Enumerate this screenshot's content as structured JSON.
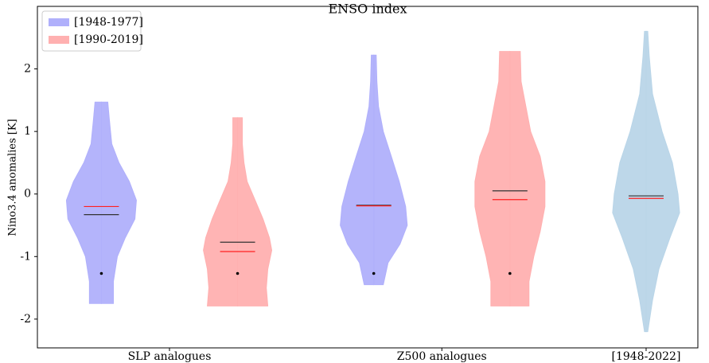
{
  "chart_data": {
    "type": "violin",
    "title": "ENSO index",
    "y_label": "Nino3.4 anomalies [K]",
    "xlim": [
      0.53,
      5.38
    ],
    "ylim": [
      -2.46,
      3.0
    ],
    "xticks": [
      {
        "value": 1.5,
        "label": "SLP analogues"
      },
      {
        "value": 3.5,
        "label": "Z500 analogues"
      },
      {
        "value": 5,
        "label": "[1948-2022]"
      }
    ],
    "yticks": [
      -2,
      -1,
      0,
      1,
      2
    ],
    "legend": "upper left",
    "series": [
      {
        "name": "[1948-1977]",
        "color": "#b0b0fb"
      },
      {
        "name": "[1990-2019]",
        "color": "#ffb0b0"
      }
    ],
    "mean_color": "#333333",
    "median_color": "#ff2020",
    "marker_color": "#000000",
    "violins": [
      {
        "x": 1,
        "color": "#b0b0fb",
        "min": -1.75,
        "max": 1.47,
        "mean": -0.33,
        "median": -0.2,
        "marker": -1.27,
        "profile": {
          "y": [
            1.47,
            1.2,
            0.8,
            0.5,
            0.2,
            -0.1,
            -0.4,
            -0.7,
            -1.0,
            -1.4,
            -1.75
          ],
          "halfwidth": [
            0.047,
            0.058,
            0.076,
            0.129,
            0.205,
            0.257,
            0.246,
            0.175,
            0.117,
            0.088,
            0.088
          ]
        }
      },
      {
        "x": 2,
        "color": "#ffb0b0",
        "min": -1.79,
        "max": 1.22,
        "mean": -0.77,
        "median": -0.92,
        "marker": -1.27,
        "profile": {
          "y": [
            1.22,
            0.8,
            0.5,
            0.2,
            -0.1,
            -0.4,
            -0.7,
            -0.9,
            -1.2,
            -1.5,
            -1.79
          ],
          "halfwidth": [
            0.035,
            0.035,
            0.047,
            0.07,
            0.129,
            0.187,
            0.234,
            0.251,
            0.222,
            0.211,
            0.222
          ]
        }
      },
      {
        "x": 3,
        "color": "#b0b0fb",
        "min": -1.45,
        "max": 2.22,
        "mean": -0.18,
        "median": -0.19,
        "marker": -1.27,
        "profile": {
          "y": [
            2.22,
            1.8,
            1.4,
            1.0,
            0.6,
            0.2,
            -0.2,
            -0.5,
            -0.8,
            -1.1,
            -1.45
          ],
          "halfwidth": [
            0.018,
            0.023,
            0.035,
            0.07,
            0.129,
            0.187,
            0.234,
            0.246,
            0.193,
            0.105,
            0.07
          ]
        }
      },
      {
        "x": 4,
        "color": "#ffb0b0",
        "min": -1.79,
        "max": 2.28,
        "mean": 0.05,
        "median": -0.09,
        "marker": -1.27,
        "profile": {
          "y": [
            2.28,
            1.8,
            1.4,
            1.0,
            0.6,
            0.2,
            -0.2,
            -0.6,
            -1.0,
            -1.4,
            -1.79
          ],
          "halfwidth": [
            0.076,
            0.082,
            0.117,
            0.152,
            0.222,
            0.257,
            0.257,
            0.222,
            0.175,
            0.14,
            0.14
          ]
        }
      },
      {
        "x": 5,
        "color": "#b9d5e8",
        "min": -2.2,
        "max": 2.6,
        "mean": -0.03,
        "median": -0.07,
        "profile": {
          "y": [
            2.6,
            2.2,
            1.6,
            1.0,
            0.5,
            0.0,
            -0.3,
            -0.7,
            -1.2,
            -1.7,
            -2.2
          ],
          "halfwidth": [
            0.012,
            0.023,
            0.047,
            0.117,
            0.193,
            0.234,
            0.246,
            0.175,
            0.094,
            0.047,
            0.012
          ]
        }
      }
    ]
  }
}
